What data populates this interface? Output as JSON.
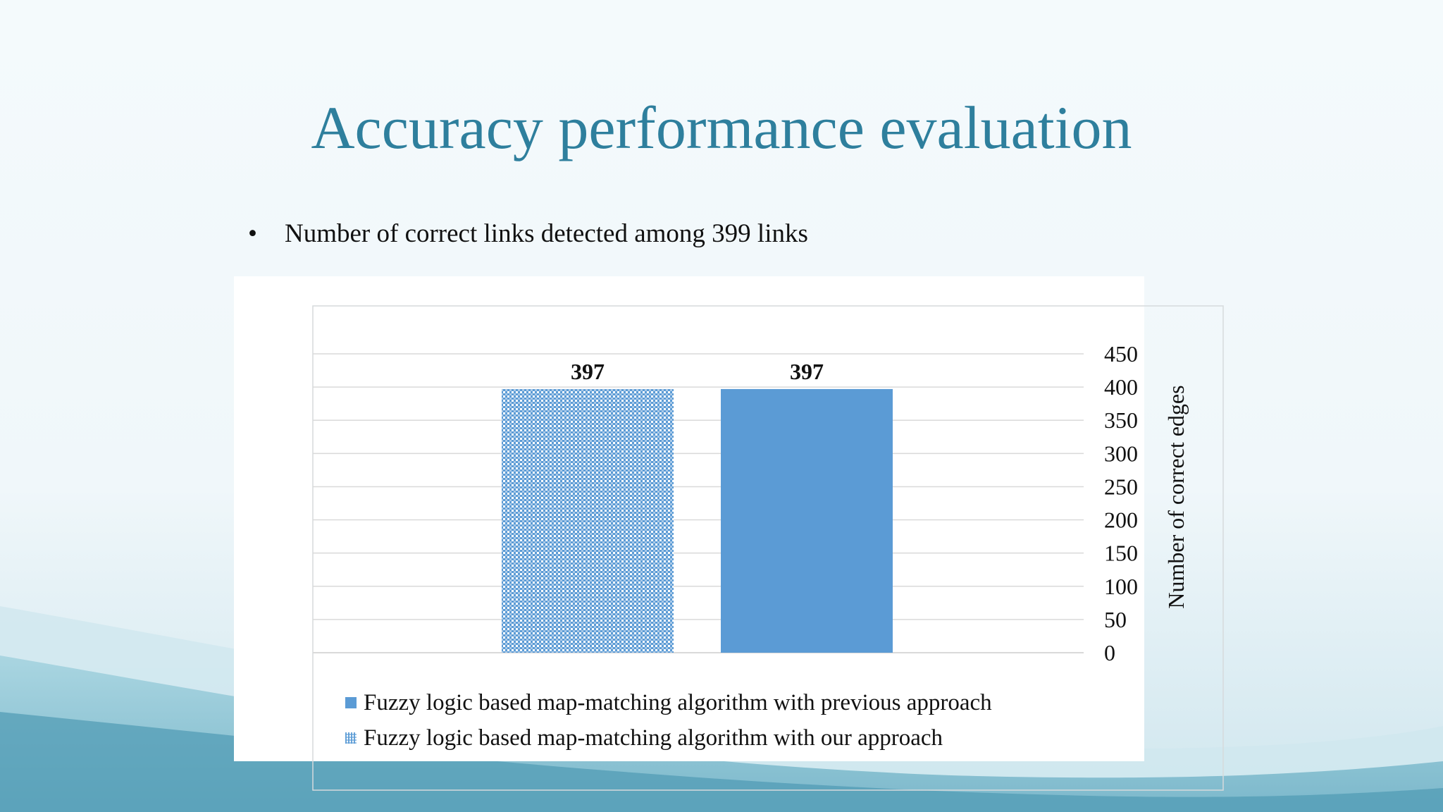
{
  "slide": {
    "title": "Accuracy performance evaluation",
    "bullet": "Number of correct links detected among 399 links"
  },
  "colors": {
    "title": "#2e7f9d",
    "bar_fill": "#5b9bd5",
    "gridline": "#d9d9d9"
  },
  "chart_data": {
    "type": "bar",
    "title": "",
    "xlabel": "",
    "ylabel": "Number of correct edges",
    "ylim": [
      0,
      450
    ],
    "yticks": [
      0,
      50,
      100,
      150,
      200,
      250,
      300,
      350,
      400,
      450
    ],
    "y_axis_side": "right",
    "grid": true,
    "legend_position": "bottom-left",
    "series": [
      {
        "name": "Fuzzy logic based map-matching algorithm with our approach",
        "value": 397,
        "fill": "pattern",
        "data_label": "397"
      },
      {
        "name": "Fuzzy logic based map-matching algorithm with previous approach",
        "value": 397,
        "fill": "solid",
        "data_label": "397"
      }
    ],
    "legend": [
      {
        "label": "Fuzzy logic based map-matching algorithm with previous approach",
        "fill": "solid"
      },
      {
        "label": "Fuzzy logic based map-matching algorithm with our approach",
        "fill": "pattern"
      }
    ]
  }
}
